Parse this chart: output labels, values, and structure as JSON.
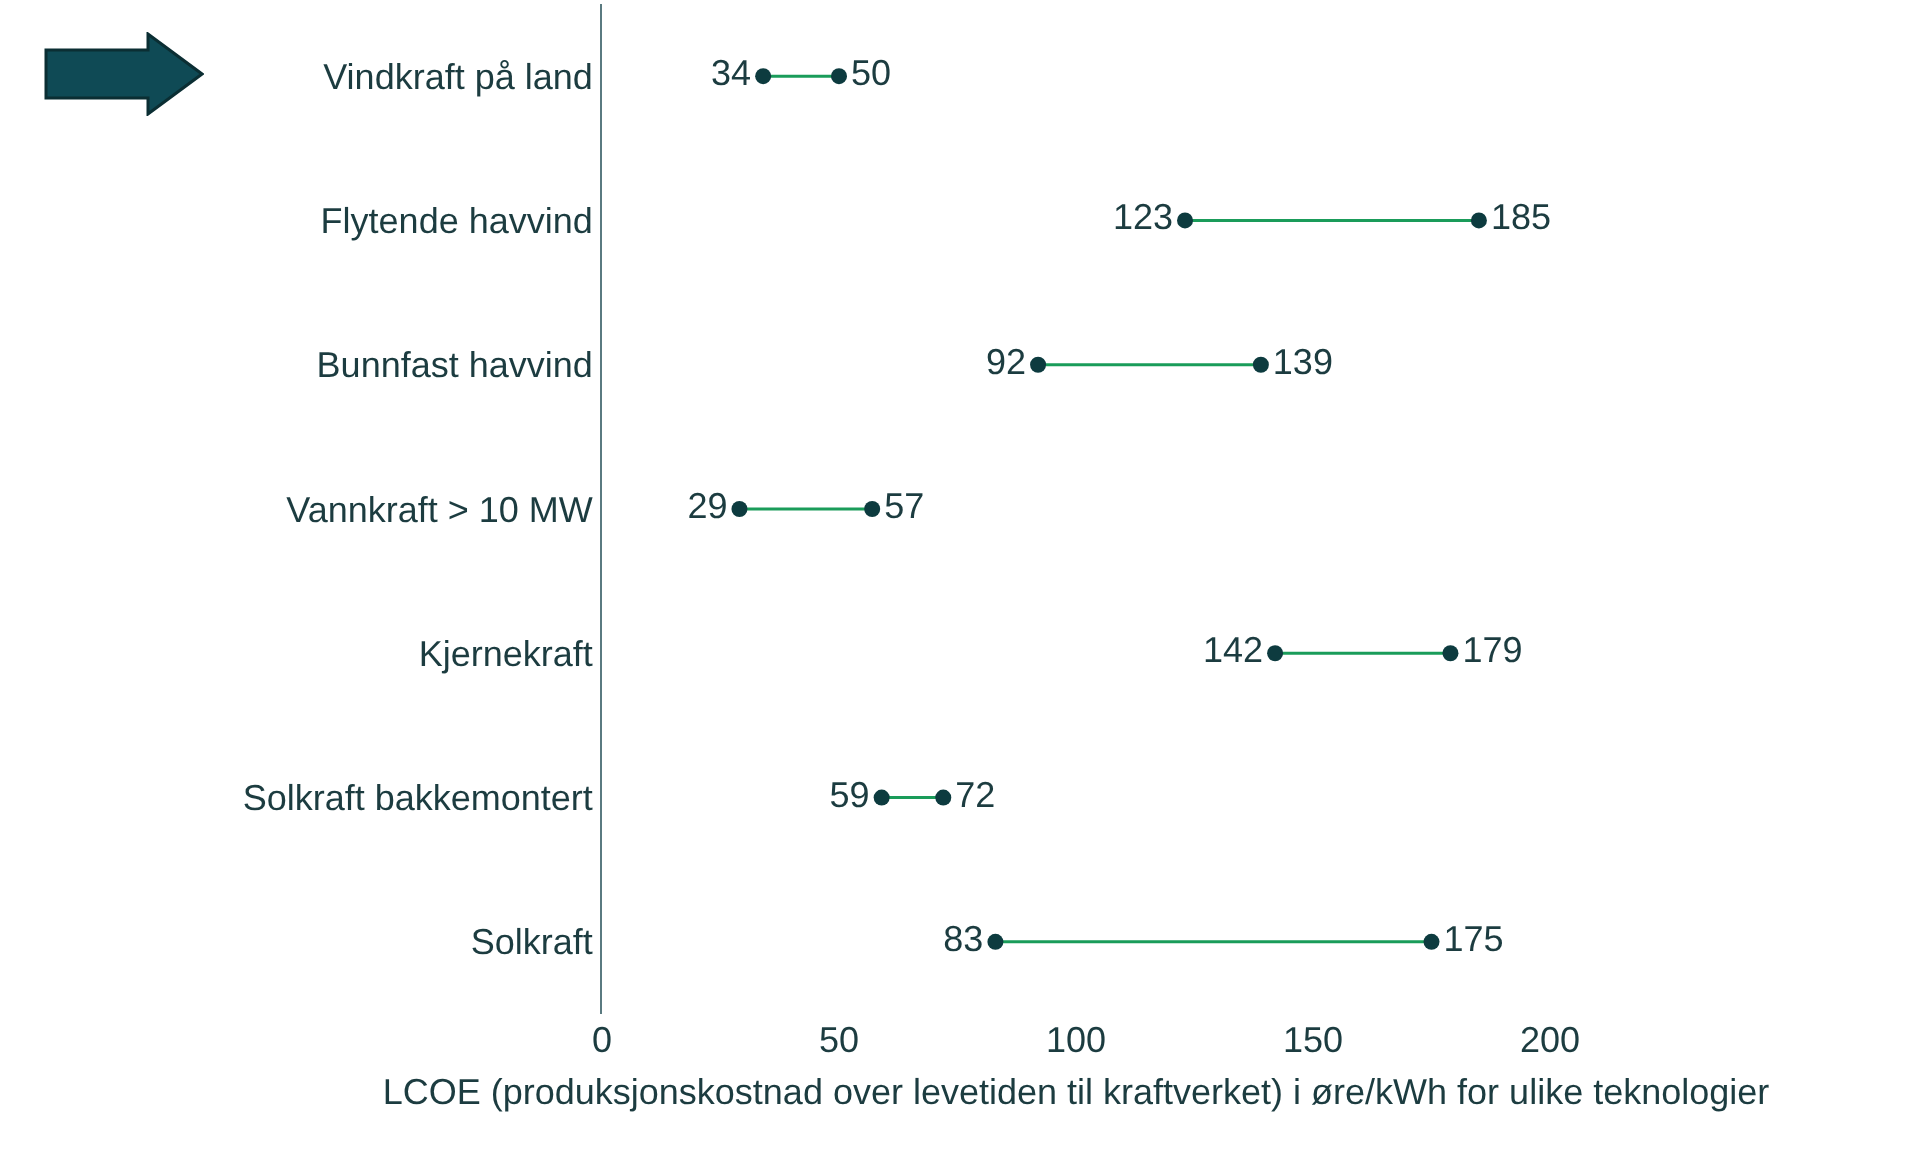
{
  "chart_data": {
    "type": "scatter",
    "orientation": "horizontal",
    "xlabel": "LCOE (produksjonskostnad over levetiden til kraftverket) i øre/kWh for ulike teknologier",
    "categories": [
      "Vindkraft på land",
      "Flytende havvind",
      "Bunnfast havvind",
      "Vannkraft > 10 MW",
      "Kjernekraft",
      "Solkraft bakkemontert",
      "Solkraft"
    ],
    "series": [
      {
        "color": "#0d3b3f",
        "values": [
          34,
          123,
          92,
          29,
          142,
          59,
          83
        ]
      },
      {
        "color": "#0d3b3f",
        "values": [
          50,
          185,
          139,
          57,
          179,
          72,
          175
        ]
      }
    ],
    "color": "#1a9c5a",
    "xlim": [
      0,
      200
    ],
    "xticks": [
      0,
      50,
      100,
      150,
      200
    ],
    "data_labels": true,
    "marker": "circle",
    "grid": false
  }
}
